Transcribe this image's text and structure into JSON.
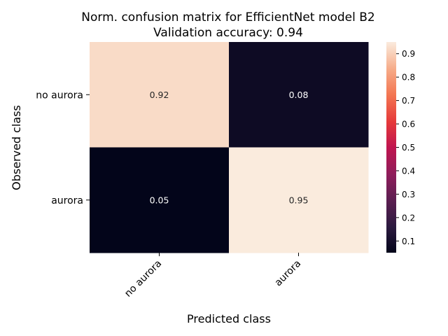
{
  "chart_data": {
    "type": "heatmap",
    "title": "Norm. confusion matrix for EfficientNet model B2",
    "subtitle": "Validation accuracy: 0.94",
    "xlabel": "Predicted class",
    "ylabel": "Observed class",
    "x_categories": [
      "no aurora",
      "aurora"
    ],
    "y_categories": [
      "no aurora",
      "aurora"
    ],
    "values": [
      [
        0.92,
        0.08
      ],
      [
        0.05,
        0.95
      ]
    ],
    "value_labels": [
      [
        "0.92",
        "0.08"
      ],
      [
        "0.05",
        "0.95"
      ]
    ],
    "colormap": "rocket",
    "colorbar_range": [
      0.05,
      0.95
    ],
    "colorbar_ticks": [
      "0.1",
      "0.2",
      "0.3",
      "0.4",
      "0.5",
      "0.6",
      "0.7",
      "0.8",
      "0.9"
    ],
    "grid": false,
    "colorbar_placement": "right"
  }
}
